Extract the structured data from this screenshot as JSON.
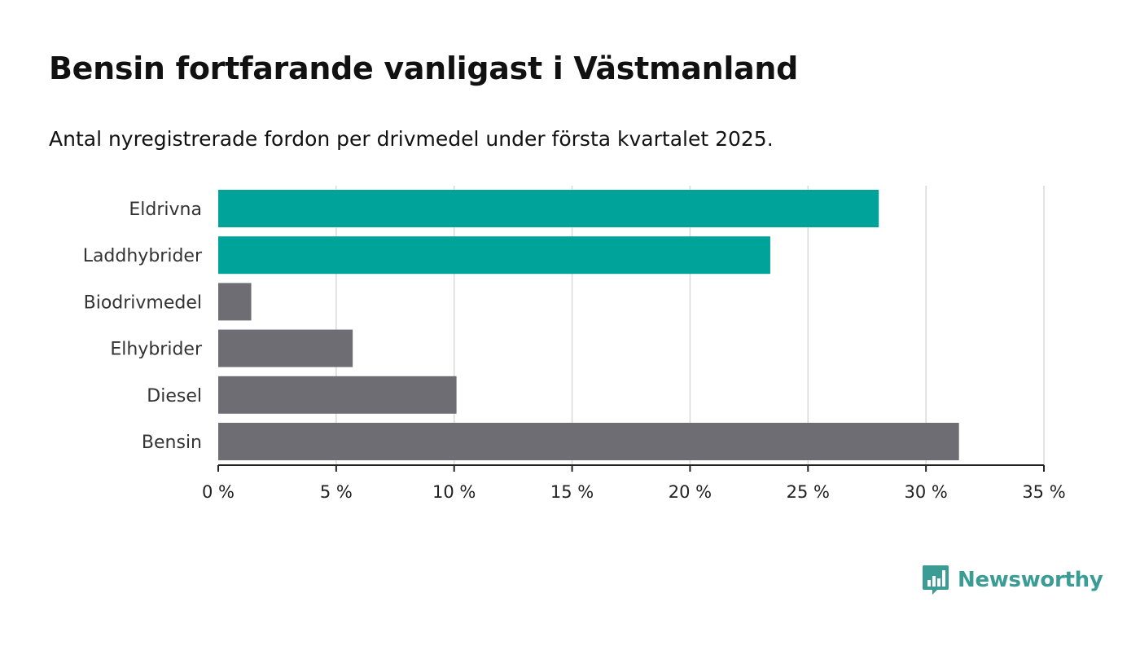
{
  "header": {
    "title": "Bensin fortfarande vanligast i Västmanland",
    "subtitle": "Antal nyregistrerade fordon per drivmedel under första kvartalet 2025."
  },
  "brand": {
    "name": "Newsworthy",
    "icon": "newsworthy-logo-icon",
    "color": "#3a9c94"
  },
  "colors": {
    "highlight": "#00a39a",
    "default": "#6e6d73",
    "grid": "#d9d9d9",
    "axis": "#222222"
  },
  "chart_data": {
    "type": "bar",
    "orientation": "horizontal",
    "categories": [
      "Eldrivna",
      "Laddhybrider",
      "Biodrivmedel",
      "Elhybrider",
      "Diesel",
      "Bensin"
    ],
    "values": [
      28.0,
      23.4,
      1.4,
      5.7,
      10.1,
      31.4
    ],
    "highlighted": [
      true,
      true,
      false,
      false,
      false,
      false
    ],
    "x_ticks": [
      0,
      5,
      10,
      15,
      20,
      25,
      30,
      35
    ],
    "x_tick_labels": [
      "0 %",
      "5 %",
      "10 %",
      "15 %",
      "20 %",
      "25 %",
      "30 %",
      "35 %"
    ],
    "xlim": [
      0,
      35
    ],
    "grid": true,
    "legend": "none"
  }
}
